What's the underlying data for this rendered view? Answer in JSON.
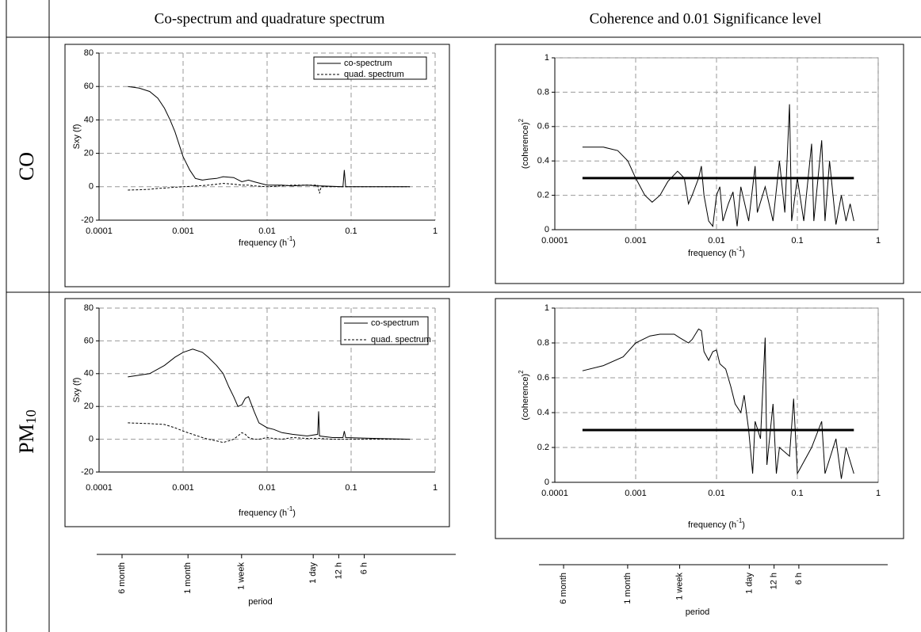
{
  "table": {
    "headers": [
      "Co-spectrum and quadrature spectrum",
      "Coherence and 0.01 Significance level"
    ],
    "rows": [
      [
        "CO"
      ],
      [
        "PM",
        "10"
      ]
    ]
  },
  "chart_data": [
    {
      "type": "line",
      "xscale": "log",
      "grid": true,
      "legend": "upper right",
      "y_label": [
        "Sxy (f)"
      ],
      "x_label": [
        "frequency (h",
        "-1",
        ")"
      ],
      "xlim": [
        0.0001,
        1
      ],
      "xticks": [
        0.0001,
        0.001,
        0.01,
        0.1,
        1
      ],
      "ylim": [
        -20,
        80
      ],
      "yticks": [
        -20,
        0,
        20,
        40,
        60,
        80
      ],
      "x": [
        0.00022,
        0.0003,
        0.0004,
        0.0005,
        0.0006,
        0.0007,
        0.0008,
        0.001,
        0.0012,
        0.0014,
        0.0017,
        0.002,
        0.0025,
        0.003,
        0.004,
        0.005,
        0.006,
        0.007,
        0.01,
        0.015,
        0.02,
        0.03,
        0.04,
        0.042,
        0.044,
        0.08,
        0.083,
        0.086,
        0.2,
        0.5
      ],
      "series": [
        {
          "name": "co-spectrum",
          "color": "#000000",
          "dash": "none",
          "values": [
            60,
            59,
            57,
            53,
            47,
            40,
            33,
            18,
            10,
            5,
            4,
            4.5,
            5,
            6,
            5.5,
            3,
            4,
            3,
            1,
            1,
            0.5,
            1,
            0.5,
            0.5,
            0.5,
            0,
            10,
            0,
            0,
            0
          ]
        },
        {
          "name": "quad. spectrum",
          "color": "#000000",
          "dash": "3 2",
          "values": [
            -2,
            -1.8,
            -1.5,
            -1,
            -0.8,
            -0.5,
            -0.3,
            0,
            0.2,
            0.5,
            0.7,
            1,
            1.5,
            2,
            1.5,
            1,
            1,
            0.5,
            0,
            0.5,
            1,
            1,
            1,
            -4,
            0,
            0,
            0,
            0,
            0,
            0
          ]
        }
      ]
    },
    {
      "type": "line",
      "xscale": "log",
      "grid": true,
      "y_label": [
        "(coherence)",
        "2"
      ],
      "x_label": [
        "frequency (h",
        "-1",
        ")"
      ],
      "xlim": [
        0.0001,
        1
      ],
      "xticks": [
        0.0001,
        0.001,
        0.01,
        0.1,
        1
      ],
      "ylim": [
        0,
        1
      ],
      "yticks": [
        0,
        0.2,
        0.4,
        0.6,
        0.8,
        1
      ],
      "series": [
        {
          "color": "#000000",
          "width": 1,
          "x": [
            0.00022,
            0.0004,
            0.0006,
            0.0008,
            0.001,
            0.0013,
            0.0016,
            0.002,
            0.0025,
            0.0033,
            0.004,
            0.0045,
            0.005,
            0.006,
            0.0065,
            0.007,
            0.008,
            0.009,
            0.01,
            0.011,
            0.012,
            0.014,
            0.016,
            0.018,
            0.02,
            0.025,
            0.03,
            0.032,
            0.04,
            0.05,
            0.06,
            0.07,
            0.08,
            0.085,
            0.1,
            0.12,
            0.15,
            0.16,
            0.2,
            0.22,
            0.25,
            0.3,
            0.35,
            0.4,
            0.45,
            0.5
          ],
          "values": [
            0.48,
            0.48,
            0.46,
            0.4,
            0.3,
            0.2,
            0.16,
            0.2,
            0.28,
            0.34,
            0.3,
            0.15,
            0.2,
            0.3,
            0.37,
            0.2,
            0.05,
            0.02,
            0.2,
            0.25,
            0.05,
            0.15,
            0.22,
            0.02,
            0.25,
            0.05,
            0.37,
            0.1,
            0.25,
            0.05,
            0.4,
            0.1,
            0.73,
            0.05,
            0.3,
            0.05,
            0.5,
            0.05,
            0.52,
            0.05,
            0.4,
            0.03,
            0.2,
            0.05,
            0.15,
            0.05
          ]
        },
        {
          "color": "#000000",
          "width": 3,
          "x": [
            0.00022,
            0.5
          ],
          "values": [
            0.3,
            0.3
          ]
        }
      ]
    },
    {
      "type": "line",
      "xscale": "log",
      "grid": true,
      "legend": "upper right",
      "y_label": [
        "Sxy (f)"
      ],
      "x_label": [
        "frequency (h",
        "-1",
        ")"
      ],
      "xlim": [
        0.0001,
        1
      ],
      "xticks": [
        0.0001,
        0.001,
        0.01,
        0.1,
        1
      ],
      "ylim": [
        -20,
        80
      ],
      "yticks": [
        -20,
        0,
        20,
        40,
        60,
        80
      ],
      "x": [
        0.00022,
        0.0004,
        0.0006,
        0.0008,
        0.001,
        0.0013,
        0.0017,
        0.002,
        0.0025,
        0.003,
        0.0035,
        0.004,
        0.0045,
        0.005,
        0.0055,
        0.006,
        0.007,
        0.008,
        0.01,
        0.012,
        0.015,
        0.02,
        0.03,
        0.04,
        0.041,
        0.042,
        0.06,
        0.08,
        0.083,
        0.086,
        0.2,
        0.5
      ],
      "series": [
        {
          "name": "co-spectrum",
          "color": "#000000",
          "dash": "none",
          "values": [
            38,
            40,
            45,
            50,
            53,
            55,
            53,
            50,
            45,
            40,
            32,
            26,
            20,
            21,
            25,
            26,
            17,
            10,
            7,
            6,
            4,
            3,
            2,
            3,
            17,
            2,
            1,
            1,
            5,
            1,
            0.5,
            0
          ]
        },
        {
          "name": "quad. spectrum",
          "color": "#000000",
          "dash": "3 2",
          "values": [
            10,
            9.5,
            9,
            7,
            5,
            3,
            1,
            0,
            -1,
            -2,
            -1,
            0,
            2,
            4,
            3,
            1,
            0,
            0,
            1,
            0.5,
            0,
            1,
            0.5,
            0.5,
            0.5,
            0.5,
            0,
            0,
            0,
            0,
            0,
            0
          ]
        }
      ]
    },
    {
      "type": "line",
      "xscale": "log",
      "grid": true,
      "y_label": [
        "(coherence)",
        "2"
      ],
      "x_label": [
        "frequency (h",
        "-1",
        ")"
      ],
      "xlim": [
        0.0001,
        1
      ],
      "xticks": [
        0.0001,
        0.001,
        0.01,
        0.1,
        1
      ],
      "ylim": [
        0,
        1
      ],
      "yticks": [
        0,
        0.2,
        0.4,
        0.6,
        0.8,
        1
      ],
      "series": [
        {
          "color": "#000000",
          "width": 1,
          "x": [
            0.00022,
            0.0004,
            0.0007,
            0.001,
            0.0015,
            0.002,
            0.003,
            0.0035,
            0.0045,
            0.005,
            0.006,
            0.0065,
            0.007,
            0.008,
            0.009,
            0.01,
            0.011,
            0.013,
            0.015,
            0.017,
            0.02,
            0.022,
            0.025,
            0.028,
            0.03,
            0.035,
            0.04,
            0.042,
            0.05,
            0.055,
            0.06,
            0.08,
            0.09,
            0.1,
            0.15,
            0.2,
            0.22,
            0.3,
            0.35,
            0.4,
            0.5
          ],
          "values": [
            0.64,
            0.67,
            0.72,
            0.8,
            0.84,
            0.85,
            0.85,
            0.83,
            0.8,
            0.82,
            0.88,
            0.87,
            0.75,
            0.7,
            0.75,
            0.76,
            0.68,
            0.65,
            0.55,
            0.45,
            0.4,
            0.5,
            0.3,
            0.05,
            0.35,
            0.25,
            0.83,
            0.1,
            0.45,
            0.05,
            0.2,
            0.15,
            0.48,
            0.05,
            0.2,
            0.35,
            0.05,
            0.25,
            0.02,
            0.2,
            0.05
          ]
        },
        {
          "color": "#000000",
          "width": 3,
          "x": [
            0.00022,
            0.5
          ],
          "values": [
            0.3,
            0.3
          ]
        }
      ]
    },
    {
      "type": "axis",
      "xscale": "log",
      "x_label": [
        "period"
      ],
      "xlim": [
        8600,
        0.5
      ],
      "xticks": [
        {
          "value": 4320,
          "label": "6 month"
        },
        {
          "value": 720,
          "label": "1 month"
        },
        {
          "value": 168,
          "label": "1 week"
        },
        {
          "value": 24,
          "label": "1 day"
        },
        {
          "value": 12,
          "label": "12 h"
        },
        {
          "value": 6,
          "label": "6 h"
        }
      ]
    },
    {
      "type": "axis",
      "xscale": "log",
      "x_label": [
        "period"
      ],
      "xlim": [
        8600,
        0.5
      ],
      "xticks": [
        {
          "value": 4320,
          "label": "6 month"
        },
        {
          "value": 720,
          "label": "1 month"
        },
        {
          "value": 168,
          "label": "1 week"
        },
        {
          "value": 24,
          "label": "1 day"
        },
        {
          "value": 12,
          "label": "12 h"
        },
        {
          "value": 6,
          "label": "6 h"
        }
      ]
    }
  ]
}
